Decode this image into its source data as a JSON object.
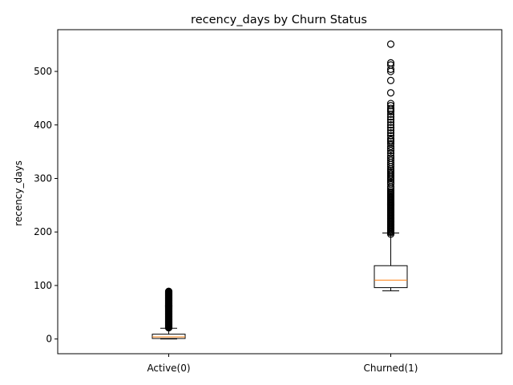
{
  "chart_data": {
    "type": "boxplot",
    "title": "recency_days by Churn Status",
    "xlabel": "",
    "ylabel": "recency_days",
    "categories": [
      "Active(0)",
      "Churned(1)"
    ],
    "ylim": [
      -27.5,
      578
    ],
    "yticks": [
      0,
      100,
      200,
      300,
      400,
      500
    ],
    "grid": false,
    "colors": {
      "box": "#000000",
      "median": "#ff7f0e",
      "flier": "#000000"
    },
    "boxes": [
      {
        "name": "Active(0)",
        "whisker_low": 0,
        "q1": 1,
        "median": 4,
        "q3": 9,
        "whisker_high": 20,
        "fliers": [
          21,
          22,
          23,
          24,
          25,
          26,
          27,
          28,
          29,
          30,
          31,
          32,
          33,
          34,
          35,
          36,
          37,
          38,
          39,
          40,
          41,
          42,
          43,
          44,
          45,
          46,
          47,
          48,
          49,
          50,
          51,
          52,
          53,
          54,
          55,
          56,
          57,
          58,
          59,
          60,
          61,
          62,
          63,
          64,
          65,
          66,
          67,
          68,
          69,
          70,
          71,
          72,
          73,
          74,
          75,
          76,
          77,
          78,
          79,
          80,
          81,
          82,
          83,
          84,
          85,
          86,
          87,
          88,
          89
        ]
      },
      {
        "name": "Churned(1)",
        "whisker_low": 90,
        "q1": 96,
        "median": 110,
        "q3": 137,
        "whisker_high": 198,
        "fliers": [
          196,
          199,
          201,
          203,
          205,
          207,
          209,
          211,
          213,
          215,
          217,
          219,
          221,
          223,
          225,
          227,
          229,
          231,
          233,
          235,
          237,
          239,
          241,
          243,
          245,
          247,
          249,
          251,
          253,
          255,
          257,
          259,
          261,
          263,
          265,
          267,
          269,
          271,
          273,
          275,
          278,
          282,
          285,
          290,
          293,
          297,
          300,
          303,
          306,
          309,
          312,
          315,
          318,
          322,
          326,
          330,
          334,
          338,
          342,
          347,
          352,
          356,
          360,
          365,
          369,
          372,
          375,
          380,
          385,
          390,
          395,
          400,
          405,
          410,
          415,
          420,
          425,
          428,
          431,
          436,
          440,
          460,
          483,
          500,
          504,
          512,
          516,
          551
        ]
      }
    ]
  }
}
